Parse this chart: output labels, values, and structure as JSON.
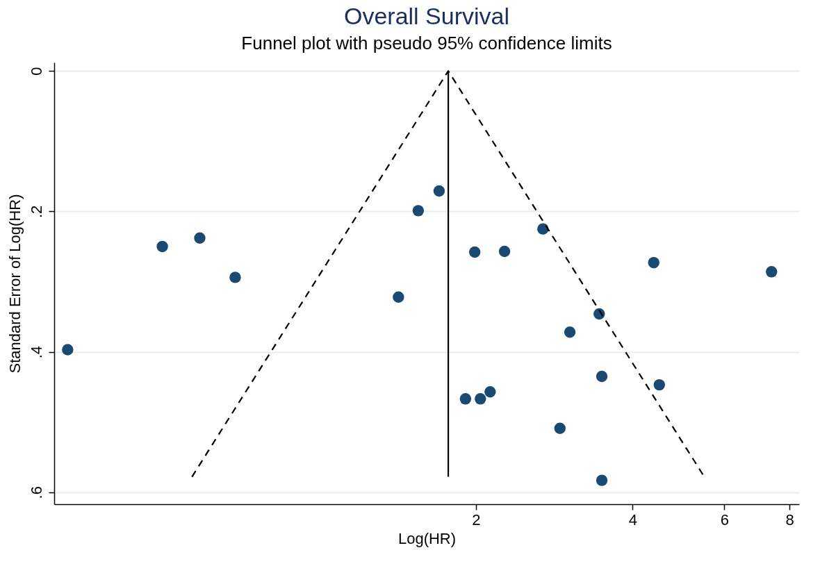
{
  "chart_data": {
    "type": "scatter",
    "title": "Overall Survival",
    "subtitle": "Funnel plot with pseudo 95% confidence limits",
    "xlabel": "Log(HR)",
    "ylabel": "Standard Error of Log(HR)",
    "log": "x",
    "xlim": [
      0.31,
      8.35
    ],
    "xticks": [
      2,
      4,
      6,
      8
    ],
    "ylim": [
      0.617,
      -0.012
    ],
    "yticks": [
      0,
      {
        "value": 0.2,
        "label": ".2"
      },
      {
        "value": 0.4,
        "label": ".4"
      },
      {
        "value": 0.6,
        "label": ".6"
      }
    ],
    "grid": "y",
    "series": [
      {
        "marker": "circle",
        "color": "#1a4a72",
        "x": [
          0.329,
          0.5,
          0.59,
          0.69,
          1.42,
          1.55,
          1.7,
          1.99,
          2.27,
          2.69,
          4.39,
          7.39,
          3.45,
          3.03,
          3.49,
          4.5,
          1.91,
          2.04,
          2.13,
          2.9,
          3.49
        ],
        "values": [
          0.397,
          0.25,
          0.238,
          0.294,
          0.322,
          0.199,
          0.171,
          0.258,
          0.257,
          0.225,
          0.273,
          0.286,
          0.346,
          0.372,
          0.435,
          0.447,
          0.467,
          0.467,
          0.457,
          0.509,
          0.583
        ]
      },
      {
        "type": "line",
        "color": "#000000",
        "line_style": "dashed",
        "x": [
          0.57,
          1.77,
          5.49
        ],
        "values": [
          0.578,
          0,
          0.578
        ]
      },
      {
        "type": "line",
        "color": "#000000",
        "line_style": "solid",
        "x": [
          1.77,
          1.77
        ],
        "values": [
          0,
          0.578
        ]
      }
    ]
  }
}
